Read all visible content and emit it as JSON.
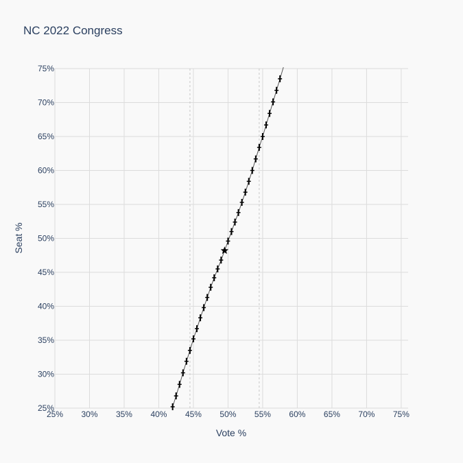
{
  "chart_data": {
    "type": "scatter",
    "title": "NC 2022 Congress",
    "xlabel": "Vote %",
    "ylabel": "Seat %",
    "xlim": [
      0.25,
      0.76
    ],
    "ylim": [
      0.25,
      0.75
    ],
    "x_ticks": [
      0.25,
      0.3,
      0.35,
      0.4,
      0.45,
      0.5,
      0.55,
      0.6,
      0.65,
      0.7,
      0.75
    ],
    "x_tick_labels": [
      "25%",
      "30%",
      "35%",
      "40%",
      "45%",
      "50%",
      "55%",
      "60%",
      "65%",
      "70%",
      "75%"
    ],
    "y_ticks": [
      0.25,
      0.3,
      0.35,
      0.4,
      0.45,
      0.5,
      0.55,
      0.6,
      0.65,
      0.7,
      0.75
    ],
    "y_tick_labels": [
      "25%",
      "30%",
      "35%",
      "40%",
      "45%",
      "50%",
      "55%",
      "60%",
      "65%",
      "70%",
      "75%"
    ],
    "grid": true,
    "reference_lines_x": [
      0.445,
      0.545
    ],
    "curve": {
      "x": [
        0.42,
        0.425,
        0.43,
        0.435,
        0.44,
        0.445,
        0.45,
        0.455,
        0.46,
        0.465,
        0.47,
        0.475,
        0.48,
        0.485,
        0.49,
        0.495,
        0.5,
        0.505,
        0.51,
        0.515,
        0.52,
        0.525,
        0.53,
        0.535,
        0.54,
        0.545,
        0.55,
        0.555,
        0.56,
        0.565,
        0.57,
        0.575,
        0.58
      ],
      "y": [
        0.252,
        0.268,
        0.285,
        0.302,
        0.319,
        0.335,
        0.352,
        0.367,
        0.383,
        0.398,
        0.413,
        0.428,
        0.442,
        0.455,
        0.468,
        0.482,
        0.496,
        0.51,
        0.524,
        0.538,
        0.553,
        0.568,
        0.584,
        0.6,
        0.617,
        0.634,
        0.65,
        0.667,
        0.684,
        0.701,
        0.718,
        0.735,
        0.752
      ]
    },
    "markers": {
      "x": [
        0.42,
        0.425,
        0.43,
        0.435,
        0.44,
        0.445,
        0.45,
        0.455,
        0.46,
        0.465,
        0.47,
        0.475,
        0.48,
        0.485,
        0.49,
        0.5,
        0.505,
        0.51,
        0.515,
        0.52,
        0.525,
        0.53,
        0.535,
        0.54,
        0.545,
        0.55,
        0.555,
        0.56,
        0.565,
        0.57,
        0.575
      ],
      "y": [
        0.252,
        0.268,
        0.285,
        0.302,
        0.319,
        0.335,
        0.352,
        0.367,
        0.383,
        0.398,
        0.413,
        0.428,
        0.442,
        0.455,
        0.468,
        0.496,
        0.51,
        0.524,
        0.538,
        0.553,
        0.568,
        0.584,
        0.6,
        0.617,
        0.634,
        0.65,
        0.667,
        0.684,
        0.701,
        0.718,
        0.735
      ]
    },
    "actual_result": {
      "x": 0.495,
      "y": 0.482
    }
  }
}
